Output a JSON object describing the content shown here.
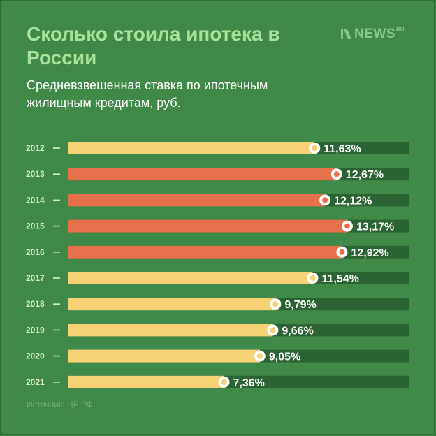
{
  "header": {
    "title": "Сколько стоила ипотека в России",
    "subtitle": "Средневзвешенная ставка по ипотечным жилищным кредитам, руб.",
    "source": "Источник: ЦБ РФ"
  },
  "logo": {
    "text": "NEWS",
    "sup": "RU",
    "icon": "news-logo-icon"
  },
  "colors": {
    "background": "#3f8a48",
    "track": "#2b6434",
    "bar_normal": "#f6d175",
    "bar_high": "#e5704a"
  },
  "chart_data": {
    "type": "bar",
    "orientation": "horizontal",
    "categories": [
      "2012",
      "2013",
      "2014",
      "2015",
      "2016",
      "2017",
      "2018",
      "2019",
      "2020",
      "2021"
    ],
    "values": [
      11.63,
      12.67,
      12.12,
      13.17,
      12.92,
      11.54,
      9.79,
      9.66,
      9.05,
      7.36
    ],
    "labels": [
      "11,63%",
      "12,67%",
      "12,12%",
      "13,17%",
      "12,92%",
      "11,54%",
      "9,79%",
      "9,66%",
      "9,05%",
      "7,36%"
    ],
    "highlight": [
      false,
      true,
      true,
      true,
      true,
      false,
      false,
      false,
      false,
      false
    ],
    "title": "",
    "xlabel": "",
    "ylabel": "",
    "xlim": [
      0,
      16.1
    ],
    "grid": false
  }
}
